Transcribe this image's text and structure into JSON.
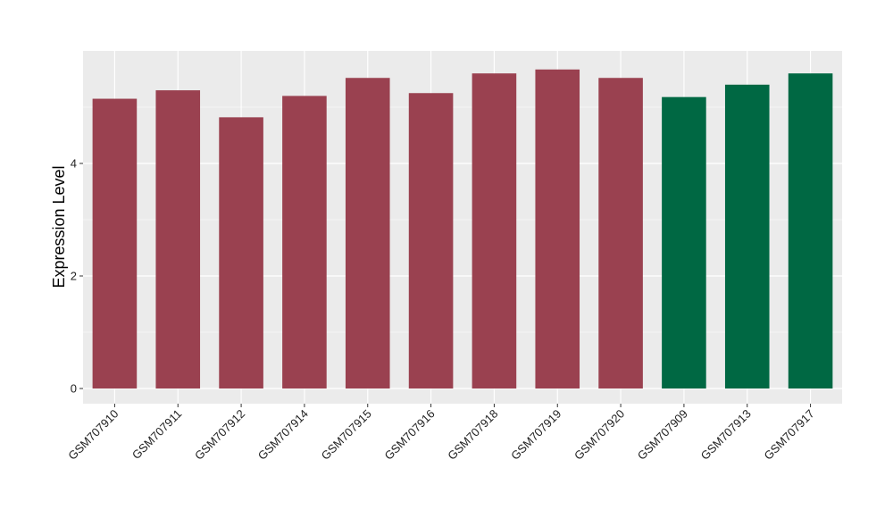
{
  "chart_data": {
    "type": "bar",
    "title": "",
    "xlabel": "",
    "ylabel": "Expression Level",
    "ylim": [
      -0.27,
      6.0
    ],
    "yticks": [
      0,
      2,
      4
    ],
    "grid": true,
    "categories": [
      "GSM707910",
      "GSM707911",
      "GSM707912",
      "GSM707914",
      "GSM707915",
      "GSM707916",
      "GSM707918",
      "GSM707919",
      "GSM707920",
      "GSM707909",
      "GSM707913",
      "GSM707917"
    ],
    "values": [
      5.15,
      5.3,
      4.82,
      5.2,
      5.52,
      5.25,
      5.6,
      5.67,
      5.52,
      5.18,
      5.4,
      5.6
    ],
    "bar_colors": [
      "#9a4150",
      "#9a4150",
      "#9a4150",
      "#9a4150",
      "#9a4150",
      "#9a4150",
      "#9a4150",
      "#9a4150",
      "#9a4150",
      "#006843",
      "#006843",
      "#006843"
    ],
    "panel_background": "#ebebeb",
    "grid_color": "#ffffff"
  }
}
